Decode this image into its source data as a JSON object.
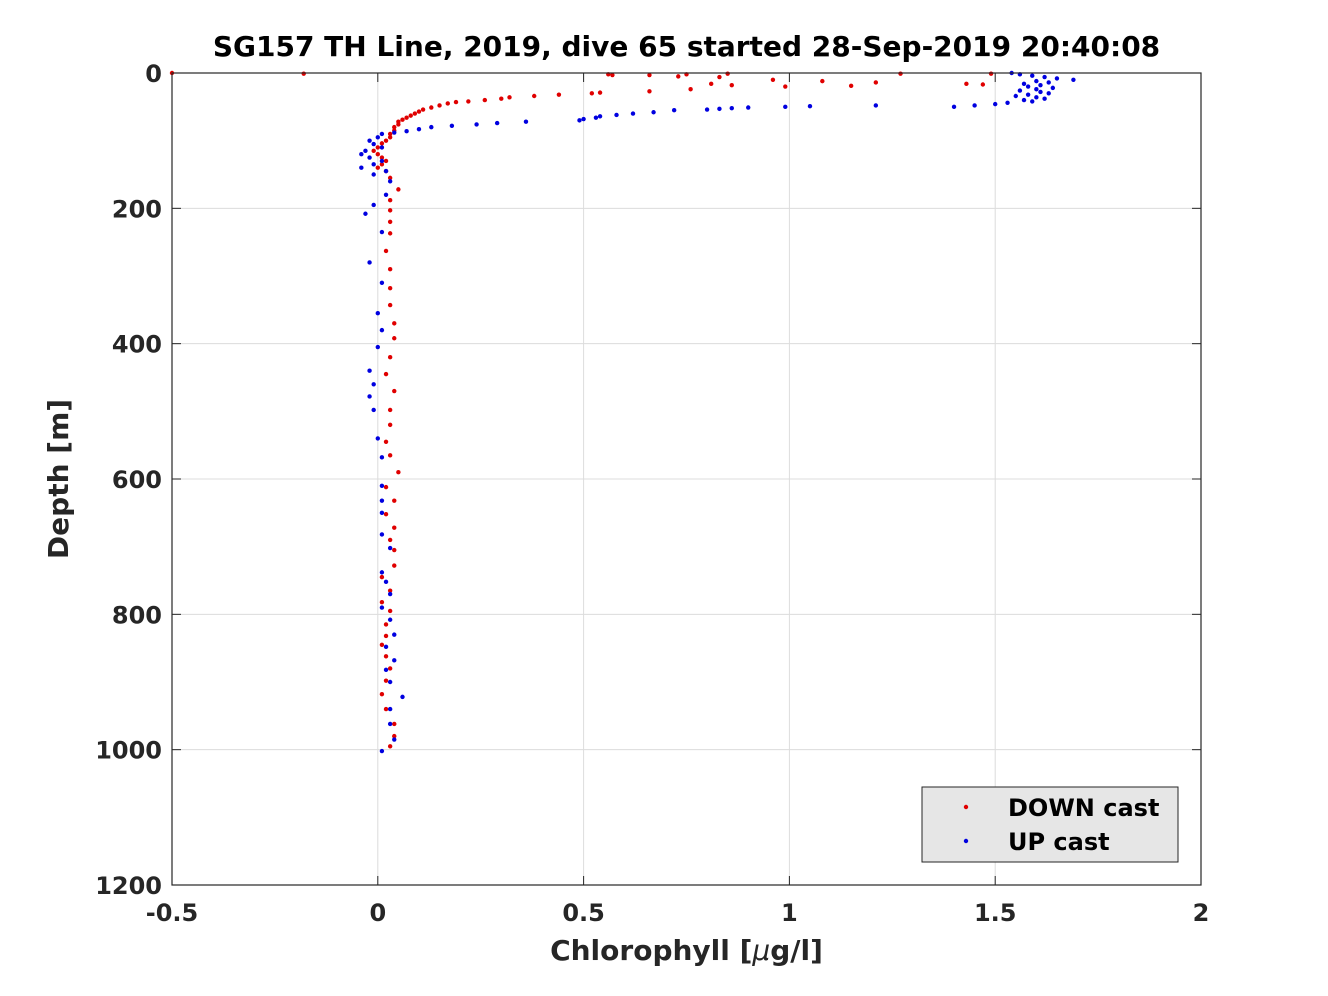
{
  "chart_data": {
    "type": "scatter",
    "title": "SG157 TH Line, 2019, dive 65 started 28-Sep-2019 20:40:08",
    "xlabel_prefix": "Chlorophyll [",
    "xlabel_mu": "μ",
    "xlabel_suffix": "g/l]",
    "ylabel": "Depth [m]",
    "xlim": [
      -0.5,
      2
    ],
    "ylim": [
      0,
      1200
    ],
    "y_reversed": true,
    "grid": true,
    "legend_placement": "bottom-right",
    "xticks": [
      {
        "value": -0.5,
        "label": "-0.5"
      },
      {
        "value": 0,
        "label": "0"
      },
      {
        "value": 0.5,
        "label": "0.5"
      },
      {
        "value": 1,
        "label": "1"
      },
      {
        "value": 1.5,
        "label": "1.5"
      },
      {
        "value": 2,
        "label": "2"
      }
    ],
    "yticks": [
      {
        "value": 0,
        "label": "0"
      },
      {
        "value": 200,
        "label": "200"
      },
      {
        "value": 400,
        "label": "400"
      },
      {
        "value": 600,
        "label": "600"
      },
      {
        "value": 800,
        "label": "800"
      },
      {
        "value": 1000,
        "label": "1000"
      },
      {
        "value": 1200,
        "label": "1200"
      }
    ],
    "series": [
      {
        "name": "DOWN cast",
        "color": "#e00000",
        "points": [
          [
            -0.5,
            0
          ],
          [
            -0.18,
            1
          ],
          [
            0.56,
            2
          ],
          [
            0.66,
            3
          ],
          [
            0.75,
            2
          ],
          [
            0.85,
            1
          ],
          [
            1.27,
            1
          ],
          [
            1.49,
            1
          ],
          [
            0.57,
            3
          ],
          [
            0.73,
            5
          ],
          [
            0.83,
            6
          ],
          [
            0.96,
            10
          ],
          [
            1.08,
            12
          ],
          [
            1.21,
            14
          ],
          [
            1.43,
            16
          ],
          [
            1.47,
            17
          ],
          [
            0.81,
            16
          ],
          [
            0.86,
            18
          ],
          [
            0.99,
            20
          ],
          [
            1.15,
            19
          ],
          [
            0.76,
            24
          ],
          [
            0.66,
            27
          ],
          [
            0.54,
            29
          ],
          [
            0.52,
            30
          ],
          [
            0.44,
            32
          ],
          [
            0.38,
            34
          ],
          [
            0.32,
            36
          ],
          [
            0.3,
            38
          ],
          [
            0.26,
            40
          ],
          [
            0.22,
            42
          ],
          [
            0.19,
            43
          ],
          [
            0.17,
            45
          ],
          [
            0.15,
            48
          ],
          [
            0.13,
            51
          ],
          [
            0.11,
            54
          ],
          [
            0.1,
            57
          ],
          [
            0.09,
            60
          ],
          [
            0.08,
            63
          ],
          [
            0.07,
            66
          ],
          [
            0.06,
            69
          ],
          [
            0.05,
            72
          ],
          [
            0.05,
            76
          ],
          [
            0.04,
            80
          ],
          [
            0.04,
            85
          ],
          [
            0.03,
            90
          ],
          [
            0.03,
            95
          ],
          [
            0.02,
            100
          ],
          [
            0.01,
            104
          ],
          [
            0.0,
            110
          ],
          [
            -0.01,
            115
          ],
          [
            0.0,
            120
          ],
          [
            0.01,
            125
          ],
          [
            0.02,
            130
          ],
          [
            0.01,
            135
          ],
          [
            0.0,
            140
          ],
          [
            0.02,
            145
          ],
          [
            0.03,
            155
          ],
          [
            0.05,
            172
          ],
          [
            0.03,
            188
          ],
          [
            0.03,
            203
          ],
          [
            0.03,
            220
          ],
          [
            0.03,
            237
          ],
          [
            0.02,
            263
          ],
          [
            0.03,
            290
          ],
          [
            0.03,
            318
          ],
          [
            0.03,
            343
          ],
          [
            0.04,
            370
          ],
          [
            0.04,
            392
          ],
          [
            0.03,
            420
          ],
          [
            0.02,
            445
          ],
          [
            0.04,
            470
          ],
          [
            0.03,
            498
          ],
          [
            0.03,
            520
          ],
          [
            0.02,
            545
          ],
          [
            0.03,
            565
          ],
          [
            0.05,
            590
          ],
          [
            0.02,
            612
          ],
          [
            0.04,
            632
          ],
          [
            0.02,
            652
          ],
          [
            0.04,
            672
          ],
          [
            0.03,
            690
          ],
          [
            0.04,
            705
          ],
          [
            0.04,
            728
          ],
          [
            0.01,
            745
          ],
          [
            0.03,
            765
          ],
          [
            0.01,
            782
          ],
          [
            0.03,
            795
          ],
          [
            0.02,
            815
          ],
          [
            0.02,
            832
          ],
          [
            0.01,
            845
          ],
          [
            0.02,
            862
          ],
          [
            0.03,
            880
          ],
          [
            0.02,
            898
          ],
          [
            0.01,
            918
          ],
          [
            0.02,
            940
          ],
          [
            0.04,
            962
          ],
          [
            0.04,
            980
          ],
          [
            0.03,
            995
          ]
        ]
      },
      {
        "name": "UP cast",
        "color": "#0000e0",
        "points": [
          [
            1.54,
            0
          ],
          [
            1.56,
            2
          ],
          [
            1.59,
            4
          ],
          [
            1.62,
            6
          ],
          [
            1.65,
            8
          ],
          [
            1.69,
            10
          ],
          [
            1.6,
            12
          ],
          [
            1.63,
            14
          ],
          [
            1.57,
            16
          ],
          [
            1.61,
            18
          ],
          [
            1.58,
            20
          ],
          [
            1.64,
            22
          ],
          [
            1.6,
            24
          ],
          [
            1.56,
            26
          ],
          [
            1.61,
            28
          ],
          [
            1.63,
            30
          ],
          [
            1.58,
            32
          ],
          [
            1.55,
            34
          ],
          [
            1.6,
            36
          ],
          [
            1.62,
            38
          ],
          [
            1.57,
            40
          ],
          [
            1.59,
            42
          ],
          [
            1.53,
            44
          ],
          [
            1.5,
            46
          ],
          [
            1.45,
            48
          ],
          [
            1.4,
            50
          ],
          [
            1.21,
            48
          ],
          [
            1.05,
            49
          ],
          [
            0.99,
            50
          ],
          [
            0.9,
            51
          ],
          [
            0.86,
            52
          ],
          [
            0.83,
            53
          ],
          [
            0.8,
            54
          ],
          [
            0.72,
            55
          ],
          [
            0.67,
            58
          ],
          [
            0.62,
            60
          ],
          [
            0.58,
            62
          ],
          [
            0.54,
            64
          ],
          [
            0.53,
            66
          ],
          [
            0.5,
            68
          ],
          [
            0.49,
            70
          ],
          [
            0.36,
            72
          ],
          [
            0.29,
            74
          ],
          [
            0.24,
            76
          ],
          [
            0.18,
            78
          ],
          [
            0.13,
            80
          ],
          [
            0.1,
            83
          ],
          [
            0.07,
            86
          ],
          [
            0.04,
            88
          ],
          [
            0.01,
            90
          ],
          [
            0.0,
            95
          ],
          [
            -0.02,
            100
          ],
          [
            -0.01,
            105
          ],
          [
            0.01,
            110
          ],
          [
            -0.03,
            115
          ],
          [
            -0.04,
            120
          ],
          [
            -0.02,
            125
          ],
          [
            0.01,
            130
          ],
          [
            -0.01,
            135
          ],
          [
            -0.04,
            140
          ],
          [
            0.02,
            145
          ],
          [
            -0.01,
            150
          ],
          [
            0.03,
            160
          ],
          [
            0.02,
            180
          ],
          [
            -0.01,
            195
          ],
          [
            -0.03,
            208
          ],
          [
            0.01,
            235
          ],
          [
            -0.02,
            280
          ],
          [
            0.01,
            310
          ],
          [
            0.0,
            355
          ],
          [
            0.01,
            380
          ],
          [
            0.0,
            405
          ],
          [
            -0.02,
            440
          ],
          [
            -0.01,
            460
          ],
          [
            -0.02,
            478
          ],
          [
            -0.01,
            498
          ],
          [
            0.0,
            540
          ],
          [
            0.01,
            568
          ],
          [
            0.01,
            610
          ],
          [
            0.01,
            632
          ],
          [
            0.01,
            650
          ],
          [
            0.01,
            682
          ],
          [
            0.03,
            702
          ],
          [
            0.01,
            738
          ],
          [
            0.02,
            752
          ],
          [
            0.03,
            770
          ],
          [
            0.01,
            790
          ],
          [
            0.03,
            808
          ],
          [
            0.04,
            830
          ],
          [
            0.02,
            848
          ],
          [
            0.04,
            868
          ],
          [
            0.02,
            882
          ],
          [
            0.03,
            900
          ],
          [
            0.06,
            922
          ],
          [
            0.03,
            940
          ],
          [
            0.03,
            962
          ],
          [
            0.04,
            985
          ],
          [
            0.01,
            1002
          ]
        ]
      }
    ]
  }
}
